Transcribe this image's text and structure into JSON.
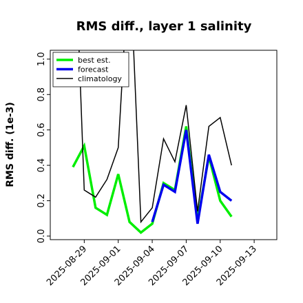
{
  "chart_data": {
    "type": "line",
    "title": "RMS diff., layer 1 salinity",
    "xlabel": "",
    "ylabel": "RMS diff. (1e-3)",
    "xlim": [
      "2025-08-26",
      "2025-09-15"
    ],
    "ylim": [
      -0.02,
      1.05
    ],
    "yticks": [
      0.0,
      0.2,
      0.4,
      0.6,
      0.8,
      1.0
    ],
    "ytick_labels": [
      "0.0",
      "0.2",
      "0.4",
      "0.6",
      "0.8",
      "1.0"
    ],
    "xticks": [
      "2025-08-29",
      "2025-09-01",
      "2025-09-04",
      "2025-09-07",
      "2025-09-10",
      "2025-09-13"
    ],
    "highlight_tick": "2025-09-04",
    "highlight_color": "#2e7d32",
    "grid": false,
    "legend_position": "top-left",
    "series": [
      {
        "name": "best est.",
        "color": "#00ee00",
        "x": [
          "2025-08-28",
          "2025-08-29",
          "2025-08-30",
          "2025-08-31",
          "2025-09-01",
          "2025-09-02",
          "2025-09-03",
          "2025-09-04",
          "2025-09-05",
          "2025-09-06",
          "2025-09-07",
          "2025-09-08",
          "2025-09-09",
          "2025-09-10",
          "2025-09-11"
        ],
        "values": [
          0.39,
          0.51,
          0.16,
          0.12,
          0.35,
          0.08,
          0.02,
          0.07,
          0.3,
          0.26,
          0.62,
          0.09,
          0.45,
          0.2,
          0.11
        ]
      },
      {
        "name": "forecast",
        "color": "#0000ee",
        "x": [
          "2025-09-04",
          "2025-09-05",
          "2025-09-06",
          "2025-09-07",
          "2025-09-08",
          "2025-09-09",
          "2025-09-10",
          "2025-09-11"
        ],
        "values": [
          0.08,
          0.29,
          0.25,
          0.6,
          0.07,
          0.46,
          0.25,
          0.2
        ]
      },
      {
        "name": "climatology",
        "color": "#000000",
        "x": [
          "2025-08-28",
          "2025-08-29",
          "2025-08-30",
          "2025-08-31",
          "2025-09-01",
          "2025-09-02",
          "2025-09-03",
          "2025-09-04",
          "2025-09-05",
          "2025-09-06",
          "2025-09-07",
          "2025-09-08",
          "2025-09-09",
          "2025-09-10",
          "2025-09-11"
        ],
        "values": [
          2.0,
          0.26,
          0.22,
          0.32,
          0.5,
          1.6,
          0.08,
          0.16,
          0.55,
          0.42,
          0.74,
          0.14,
          0.62,
          0.67,
          0.4
        ]
      }
    ]
  }
}
